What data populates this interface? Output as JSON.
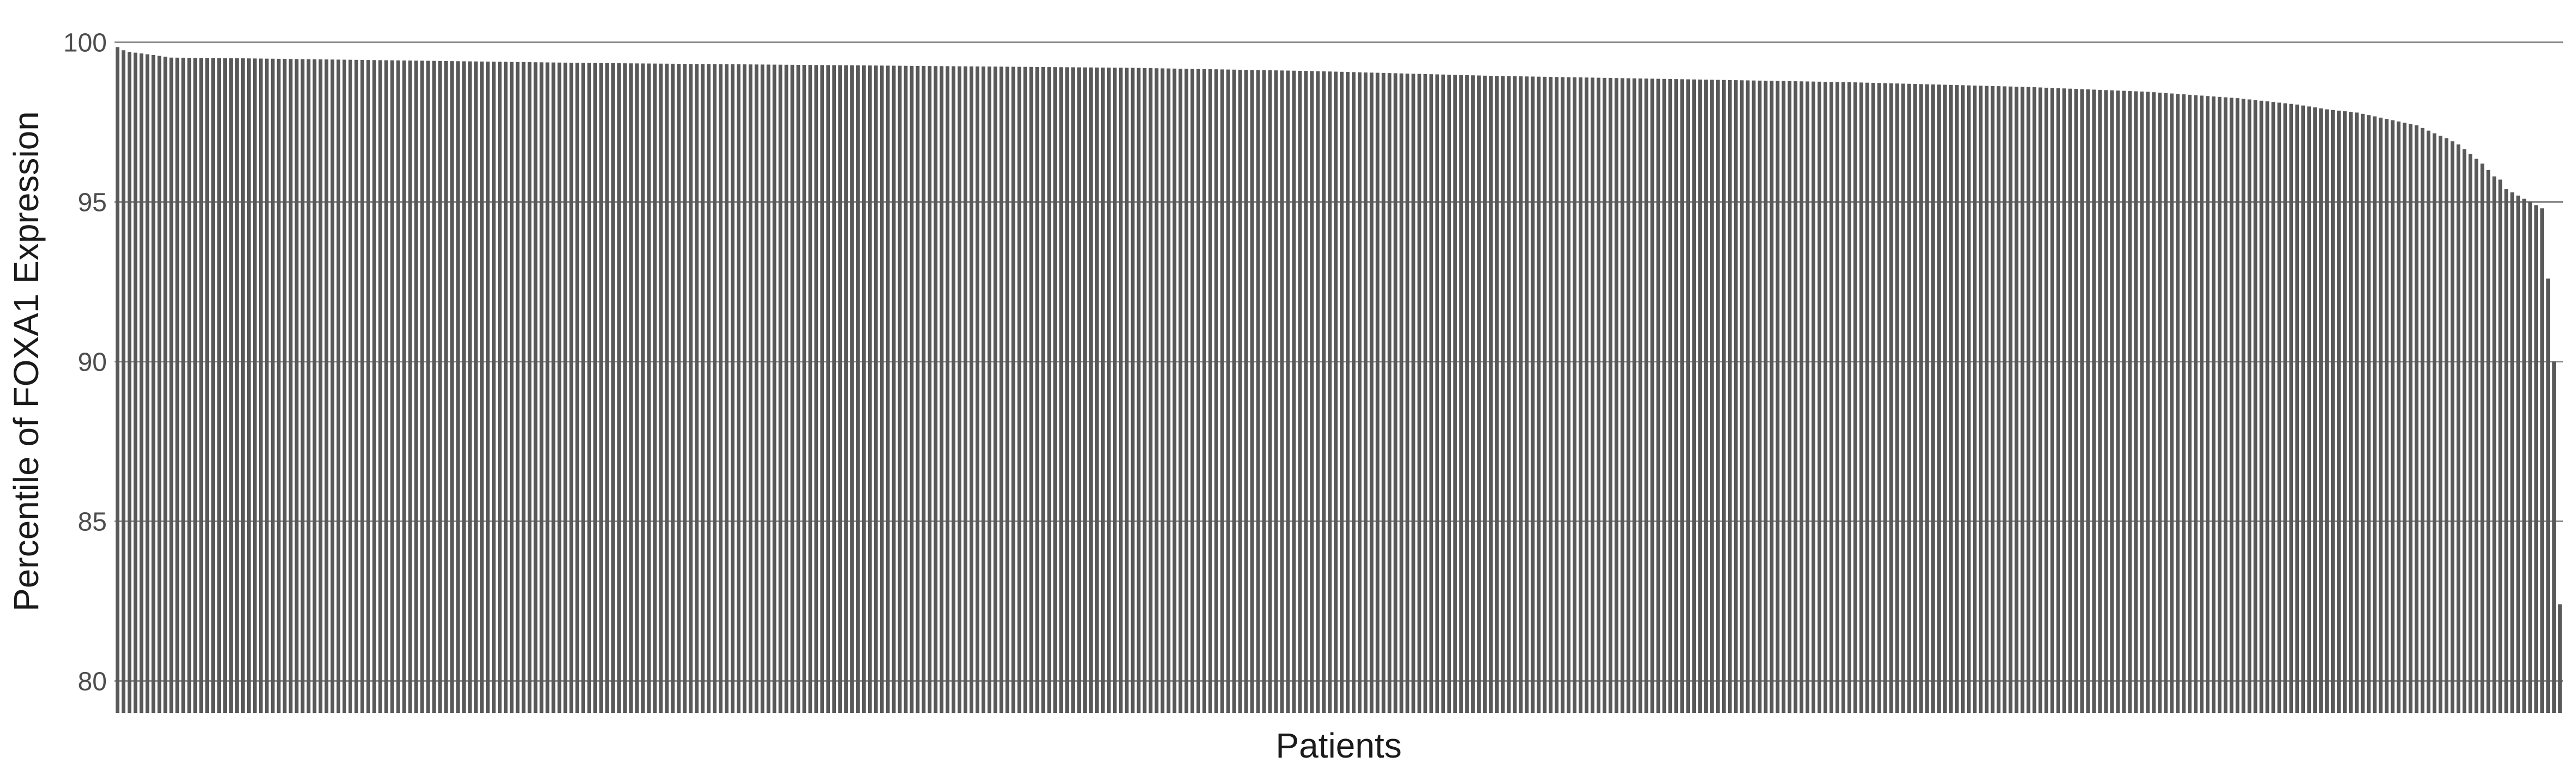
{
  "chart_data": {
    "type": "bar",
    "title": "",
    "xlabel": "Patients",
    "ylabel": "Percentile of FOXA1 Expression",
    "ylim": [
      79,
      100.3
    ],
    "yticks": [
      80,
      85,
      90,
      95,
      100
    ],
    "grid": true,
    "legend": "none",
    "colors": {
      "bar": "#595959",
      "grid": "#8c8c8c",
      "text": "#4d4d4d",
      "label": "#1a1a1a",
      "background": "#ffffff"
    },
    "n_bars": 400,
    "profile": [
      [
        0,
        99.85
      ],
      [
        1,
        99.75
      ],
      [
        2,
        99.7
      ],
      [
        4,
        99.65
      ],
      [
        6,
        99.6
      ],
      [
        8,
        99.55
      ],
      [
        9,
        99.52
      ],
      [
        20,
        99.5
      ],
      [
        40,
        99.45
      ],
      [
        60,
        99.4
      ],
      [
        80,
        99.35
      ],
      [
        110,
        99.3
      ],
      [
        140,
        99.25
      ],
      [
        170,
        99.2
      ],
      [
        200,
        99.1
      ],
      [
        230,
        98.95
      ],
      [
        260,
        98.85
      ],
      [
        290,
        98.75
      ],
      [
        320,
        98.6
      ],
      [
        340,
        98.45
      ],
      [
        355,
        98.25
      ],
      [
        365,
        98.05
      ],
      [
        370,
        97.9
      ],
      [
        375,
        97.8
      ],
      [
        380,
        97.6
      ],
      [
        385,
        97.4
      ],
      [
        388,
        97.15
      ],
      [
        390,
        97.0
      ],
      [
        392,
        96.8
      ],
      [
        394,
        96.5
      ],
      [
        396,
        96.2
      ],
      [
        398,
        95.8
      ],
      [
        399,
        95.7
      ]
    ],
    "tail_values": [
      95.4,
      95.3,
      95.2,
      95.1,
      95.0,
      94.9,
      94.8,
      92.6,
      90.0,
      82.4
    ]
  }
}
